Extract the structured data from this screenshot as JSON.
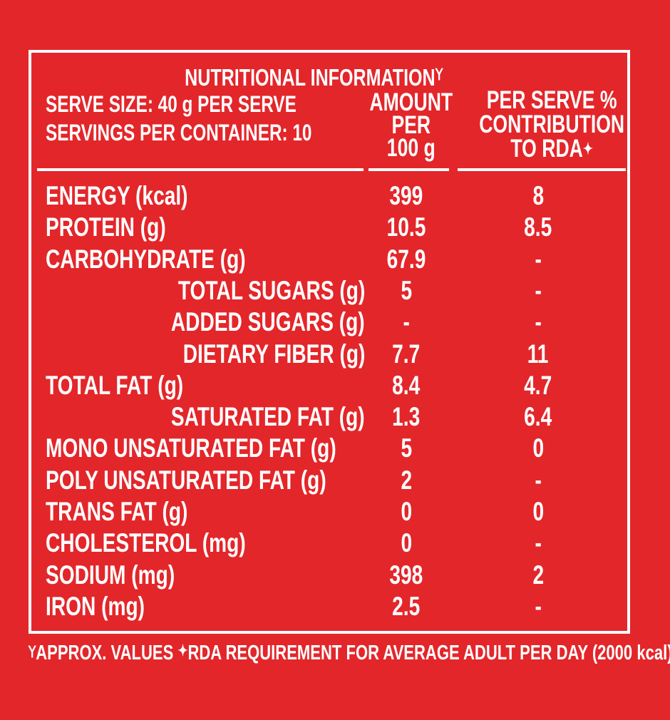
{
  "header": {
    "title": "NUTRITIONAL INFORMATION",
    "title_mark": "⅄",
    "serve_size": "SERVE SIZE: 40 g PER SERVE",
    "servings": "SERVINGS PER CONTAINER: 10",
    "amount_col": [
      "AMOUNT",
      "PER",
      "100 g"
    ],
    "rda_col": [
      "PER SERVE %",
      "CONTRIBUTION",
      "TO RDA"
    ],
    "rda_mark": "✦"
  },
  "rows": [
    {
      "label": "ENERGY (kcal)",
      "amount": "399",
      "rda": "8",
      "indent": false
    },
    {
      "label": "PROTEIN (g)",
      "amount": "10.5",
      "rda": "8.5",
      "indent": false
    },
    {
      "label": "CARBOHYDRATE (g)",
      "amount": "67.9",
      "rda": "-",
      "indent": false
    },
    {
      "label": "TOTAL SUGARS (g)",
      "amount": "5",
      "rda": "-",
      "indent": true
    },
    {
      "label": "ADDED SUGARS (g)",
      "amount": "-",
      "rda": "-",
      "indent": true
    },
    {
      "label": "DIETARY FIBER (g)",
      "amount": "7.7",
      "rda": "11",
      "indent": true
    },
    {
      "label": "TOTAL FAT  (g)",
      "amount": "8.4",
      "rda": "4.7",
      "indent": false
    },
    {
      "label": "SATURATED FAT (g)",
      "amount": "1.3",
      "rda": "6.4",
      "indent": true
    },
    {
      "label": "MONO UNSATURATED FAT (g)",
      "amount": "5",
      "rda": "0",
      "indent": false
    },
    {
      "label": "POLY UNSATURATED FAT  (g)",
      "amount": "2",
      "rda": "-",
      "indent": false
    },
    {
      "label": "TRANS FAT  (g)",
      "amount": "0",
      "rda": "0",
      "indent": false
    },
    {
      "label": "CHOLESTEROL  (mg)",
      "amount": "0",
      "rda": "-",
      "indent": false
    },
    {
      "label": "SODIUM  (mg)",
      "amount": "398",
      "rda": "2",
      "indent": false
    },
    {
      "label": "IRON  (mg)",
      "amount": "2.5",
      "rda": "-",
      "indent": false
    }
  ],
  "footer": {
    "approx_mark": "⅄",
    "approx": "APPROX. VALUES",
    "rda_mark": "✦",
    "rda_note": "RDA REQUIREMENT FOR AVERAGE ADULT PER DAY (2000 kcal)"
  },
  "colors": {
    "background": "#e3262a",
    "text": "#ffffff"
  }
}
